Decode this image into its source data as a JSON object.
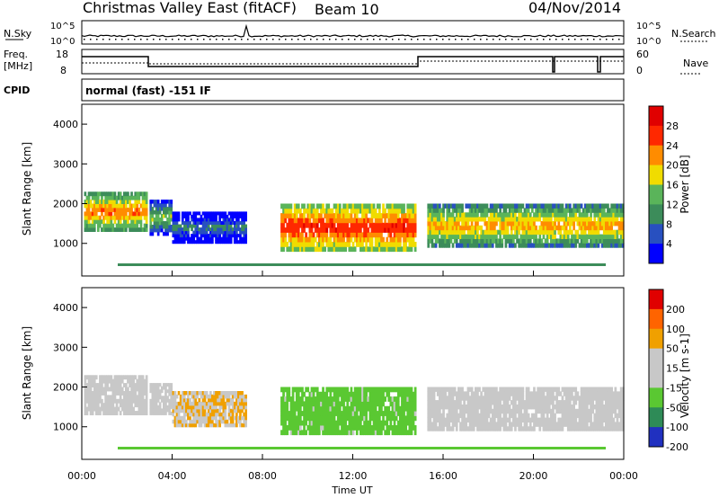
{
  "header": {
    "title": "Christmas Valley East (fitACF)",
    "beam": "Beam 10",
    "date": "04/Nov/2014"
  },
  "status_panels": {
    "nsky_label": "N.Sky",
    "nsearch_label": "N.Search",
    "noise_ticks": [
      "10^5",
      "10^0"
    ],
    "freq_label_1": "Freq.",
    "freq_label_2": "[MHz]",
    "freq_ticks": [
      "18",
      "8"
    ],
    "nave_label": "Nave",
    "nave_ticks": [
      "60",
      "0"
    ],
    "cpid_label": "CPID",
    "cpid_text": "normal (fast) -151 IF"
  },
  "chart_data": [
    {
      "type": "heatmap",
      "title": "",
      "xlabel": "Time UT",
      "ylabel": "Slant Range [km]",
      "x_ticks": [
        "00:00",
        "04:00",
        "08:00",
        "12:00",
        "16:00",
        "20:00",
        "00:00"
      ],
      "x_range_hours": [
        0,
        24
      ],
      "y_ticks": [
        "1000",
        "2000",
        "3000",
        "4000"
      ],
      "y_range_km": [
        180,
        4500
      ],
      "colorbar_label": "Power [dB]",
      "colorbar_ticks": [
        "28",
        "24",
        "20",
        "16",
        "12",
        "8",
        "4"
      ],
      "colorbar_range": [
        0,
        32
      ],
      "colorbar_colors": [
        "#0000ff",
        "#2850c0",
        "#3c8c5a",
        "#5ab45a",
        "#f0dc00",
        "#ff8c00",
        "#ff2800",
        "#e00000"
      ],
      "echo_regions_km": [
        {
          "t_start": 0.1,
          "t_end": 2.9,
          "r_low": 1300,
          "r_high": 2300,
          "peak_db": 26
        },
        {
          "t_start": 3.0,
          "t_end": 4.0,
          "r_low": 1200,
          "r_high": 2100,
          "peak_db": 18
        },
        {
          "t_start": 4.0,
          "t_end": 7.3,
          "r_low": 1000,
          "r_high": 1800,
          "peak_db": 12
        },
        {
          "t_start": 8.8,
          "t_end": 14.8,
          "r_low": 800,
          "r_high": 2000,
          "peak_db": 30
        },
        {
          "t_start": 15.3,
          "t_end": 24.0,
          "r_low": 900,
          "r_high": 2000,
          "peak_db": 24
        }
      ]
    },
    {
      "type": "heatmap",
      "title": "",
      "xlabel": "Time UT",
      "ylabel": "Slant Range [km]",
      "x_ticks": [
        "00:00",
        "04:00",
        "08:00",
        "12:00",
        "16:00",
        "20:00",
        "00:00"
      ],
      "x_range_hours": [
        0,
        24
      ],
      "y_ticks": [
        "1000",
        "2000",
        "3000",
        "4000"
      ],
      "y_range_km": [
        180,
        4500
      ],
      "colorbar_label": "Velocity [m s-1]",
      "colorbar_ticks": [
        "200",
        "100",
        "50",
        "15",
        "-15",
        "-50",
        "-100",
        "-200"
      ],
      "colorbar_range": [
        -250,
        250
      ],
      "colorbar_colors": [
        "#2030c0",
        "#2e8b57",
        "#5ac832",
        "#c8c8c8",
        "#c8c8c8",
        "#f0a000",
        "#ff6400",
        "#e00000"
      ],
      "echo_regions_km": [
        {
          "t_start": 0.1,
          "t_end": 2.9,
          "r_low": 1300,
          "r_high": 2300,
          "velocity": 0
        },
        {
          "t_start": 3.0,
          "t_end": 4.0,
          "r_low": 1300,
          "r_high": 2100,
          "velocity": 0
        },
        {
          "t_start": 4.0,
          "t_end": 7.3,
          "r_low": 1000,
          "r_high": 1900,
          "velocity": 60
        },
        {
          "t_start": 8.8,
          "t_end": 14.8,
          "r_low": 800,
          "r_high": 2000,
          "velocity": -90
        },
        {
          "t_start": 15.3,
          "t_end": 24.0,
          "r_low": 900,
          "r_high": 2000,
          "velocity": 0
        }
      ]
    }
  ]
}
